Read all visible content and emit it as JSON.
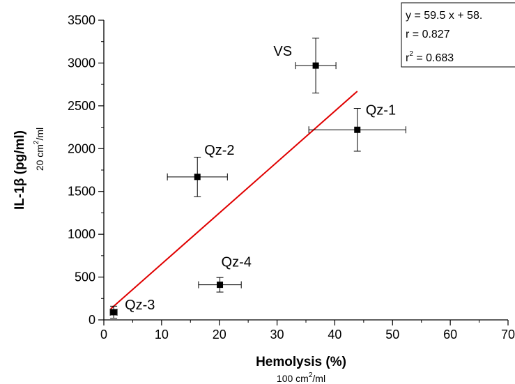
{
  "chart_data": {
    "type": "scatter",
    "xlabel": "Hemolysis (%)",
    "xlabel_sub": "100 cm",
    "xlabel_sub_sup": "2",
    "xlabel_sub_tail": "/ml",
    "ylabel": "IL-1β (pg/ml)",
    "ylabel_sub": "20 cm",
    "ylabel_sub_sup": "2",
    "ylabel_sub_tail": "/ml",
    "xlim": [
      0,
      70
    ],
    "ylim": [
      0,
      3500
    ],
    "x_ticks": [
      0,
      10,
      20,
      30,
      40,
      50,
      60,
      70
    ],
    "y_ticks": [
      0,
      500,
      1000,
      1500,
      2000,
      2500,
      3000,
      3500
    ],
    "points": [
      {
        "label": "VS",
        "x": 36.7,
        "y": 2970,
        "xerr": 3.5,
        "yerr": 320
      },
      {
        "label": "Qz-1",
        "x": 43.9,
        "y": 2220,
        "xerr": 8.4,
        "yerr": 250
      },
      {
        "label": "Qz-2",
        "x": 16.2,
        "y": 1670,
        "xerr": 5.2,
        "yerr": 230
      },
      {
        "label": "Qz-4",
        "x": 20.1,
        "y": 410,
        "xerr": 3.7,
        "yerr": 85
      },
      {
        "label": "Qz-3",
        "x": 1.7,
        "y": 90,
        "xerr": 0.6,
        "yerr": 70
      }
    ],
    "fit": {
      "x_range": [
        1.2,
        43.9
      ],
      "slope": 59.5,
      "intercept": 58,
      "color": "#e00000",
      "equation_text": "y = 59.5 x + 58.",
      "r_text": "r = 0.827",
      "r2_prefix": "r",
      "r2_sup": "2",
      "r2_suffix": " = 0.683"
    },
    "grid": false
  }
}
